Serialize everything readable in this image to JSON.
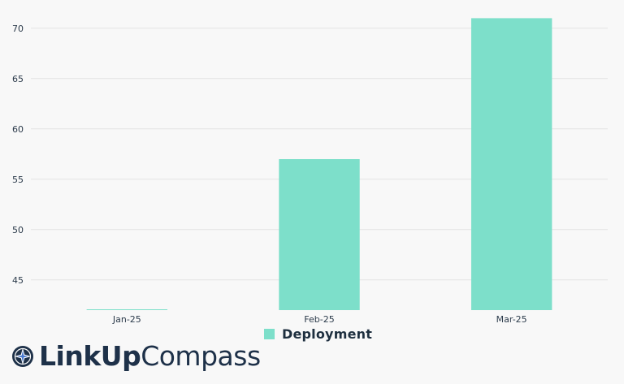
{
  "chart_data": {
    "type": "bar",
    "categories": [
      "Jan-25",
      "Feb-25",
      "Mar-25"
    ],
    "series": [
      {
        "name": "Deployment",
        "values": [
          42,
          57,
          71
        ]
      }
    ],
    "title": "",
    "xlabel": "",
    "ylabel": "",
    "ylim": [
      42,
      72
    ],
    "yticks": [
      45,
      50,
      55,
      60,
      65,
      70
    ],
    "grid": true,
    "legend": "bottom-center",
    "colors": {
      "bar": "#7ddfca",
      "grid": "#e3e3e3",
      "background": "#f8f8f8"
    }
  },
  "logo": {
    "name_bold": "LinkUp",
    "name_light": "Compass",
    "icon": "compass-icon"
  }
}
